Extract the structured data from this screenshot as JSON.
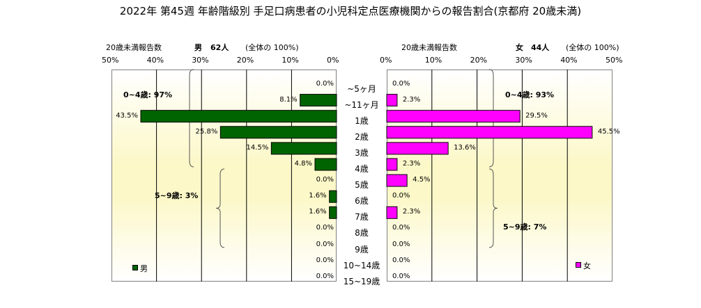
{
  "title": "2022年 第45週 年齢階級別 手足口病患者の小児科定点医療機関からの報告割合(京都府 20歳未満)",
  "left_header": {
    "subtitle": "20歳未満報告数",
    "sex": "男",
    "count": "62人",
    "share": "(全体の 100%)"
  },
  "right_header": {
    "subtitle": "20歳未満報告数",
    "sex": "女",
    "count": "44人",
    "share": "(全体の 100%)"
  },
  "chart_data": {
    "type": "bar",
    "orientation": "horizontal-pyramid",
    "categories": [
      "~5ヶ月",
      "~11ヶ月",
      "1歳",
      "2歳",
      "3歳",
      "4歳",
      "5歳",
      "6歳",
      "7歳",
      "8歳",
      "9歳",
      "10~14歳",
      "15~19歳"
    ],
    "series": [
      {
        "name": "男",
        "color": "#006400",
        "values": [
          0.0,
          8.1,
          43.5,
          25.8,
          14.5,
          4.8,
          0.0,
          1.6,
          1.6,
          0.0,
          0.0,
          0.0,
          0.0
        ],
        "labels": [
          "0.0%",
          "8.1%",
          "43.5%",
          "25.8%",
          "14.5%",
          "4.8%",
          "0.0%",
          "1.6%",
          "1.6%",
          "0.0%",
          "0.0%",
          "0.0%",
          "0.0%"
        ]
      },
      {
        "name": "女",
        "color": "#ff00ff",
        "values": [
          0.0,
          2.3,
          29.5,
          45.5,
          13.6,
          2.3,
          4.5,
          0.0,
          2.3,
          0.0,
          0.0,
          0.0,
          0.0
        ],
        "labels": [
          "0.0%",
          "2.3%",
          "29.5%",
          "45.5%",
          "13.6%",
          "2.3%",
          "4.5%",
          "0.0%",
          "2.3%",
          "0.0%",
          "0.0%",
          "0.0%",
          "0.0%"
        ]
      }
    ],
    "xlim": [
      0,
      50
    ],
    "ticks": [
      0,
      10,
      20,
      30,
      40,
      50
    ],
    "left_tick_labels": [
      "50%",
      "40%",
      "30%",
      "20%",
      "10%",
      "0%"
    ],
    "right_tick_labels": [
      "0%",
      "10%",
      "20%",
      "30%",
      "40%",
      "50%"
    ],
    "grid": true,
    "legend_left": "男",
    "legend_right": "女",
    "annotations": {
      "male_0_4": "0~4歳: 97%",
      "male_5_9": "5~9歳: 3%",
      "female_0_4": "0~4歳: 93%",
      "female_5_9": "5~9歳: 7%"
    }
  }
}
